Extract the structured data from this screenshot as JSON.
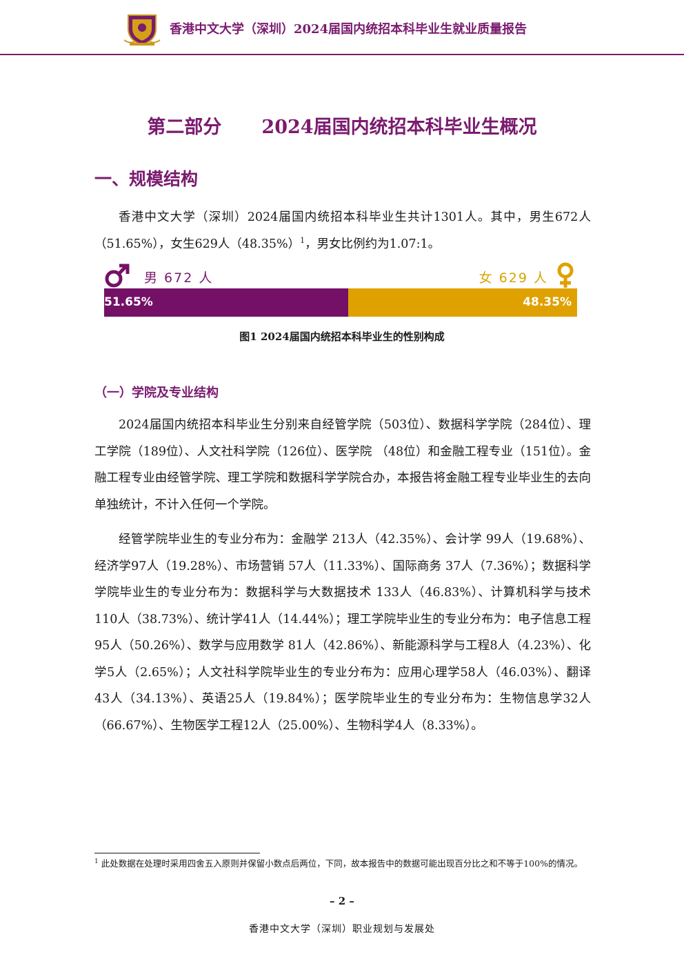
{
  "header": {
    "title": "香港中文大学（深圳）2024届国内统招本科毕业生就业质量报告",
    "crest_icon": "university-crest-icon"
  },
  "part": {
    "label": "第二部分",
    "title": "2024届国内统招本科毕业生概况"
  },
  "section1": {
    "heading": "一、规模结构",
    "intro_part1": "香港中文大学（深圳）2024届国内统招本科毕业生共计1301人。其中，男生672人（51.65%），女生629人（48.35%）",
    "intro_sup": "1",
    "intro_part2": "，男女比例约为1.07:1。"
  },
  "gender_figure": {
    "male_label": "男 672 人",
    "female_label": "女 629 人",
    "male_share": 51.65,
    "female_share": 48.35,
    "male_pct_text": "51.65%",
    "female_pct_text": "48.35%",
    "male_color": "#741167",
    "female_color": "#dfa100",
    "male_icon": "male-symbol-icon",
    "female_icon": "female-symbol-icon",
    "caption": "图1 2024届国内统招本科毕业生的性别构成"
  },
  "subsection1": {
    "heading": "（一）学院及专业结构",
    "para1": "2024届国内统招本科毕业生分别来自经管学院（503位）、数据科学学院（284位）、理工学院（189位）、人文社科学院（126位）、医学院 （48位）和金融工程专业（151位）。金融工程专业由经管学院、理工学院和数据科学学院合办，本报告将金融工程专业毕业生的去向单独统计，不计入任何一个学院。",
    "para2": "经管学院毕业生的专业分布为：金融学 213人（42.35%）、会计学 99人（19.68%）、经济学97人（19.28%）、市场营销 57人（11.33%）、国际商务 37人（7.36%）；数据科学学院毕业生的专业分布为：数据科学与大数据技术 133人（46.83%）、计算机科学与技术110人（38.73%）、统计学41人（14.44%）；理工学院毕业生的专业分布为：电子信息工程95人（50.26%）、数学与应用数学 81人（42.86%）、新能源科学与工程8人（4.23%）、化学5人（2.65%）；人文社科学院毕业生的专业分布为：应用心理学58人（46.03%）、翻译43人（34.13%）、英语25人（19.84%）；医学院毕业生的专业分布为：生物信息学32人（66.67%）、生物医学工程12人（25.00%）、生物科学4人（8.33%）。"
  },
  "footnote": {
    "marker": "1",
    "text": "此处数据在处理时采用四舍五入原则并保留小数点后两位，下同，故本报告中的数据可能出现百分比之和不等于100%的情况。"
  },
  "footer": {
    "page_number": "– 2 –",
    "organization": "香港中文大学（深圳）职业规划与发展处"
  }
}
